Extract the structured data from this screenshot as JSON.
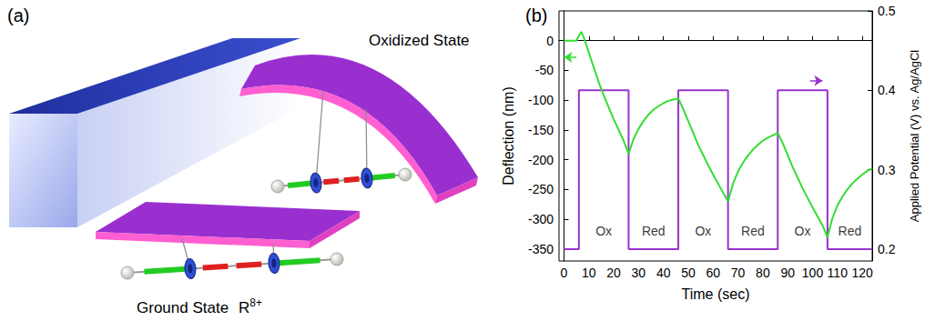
{
  "panel_a": {
    "letter": "(a)",
    "labels": {
      "oxidized": "Oxidized State",
      "ground": "Ground State"
    },
    "molecule": {
      "base": "R",
      "superscript": "8+"
    }
  },
  "chart_data": {
    "type": "line",
    "panel_label": "(b)",
    "x_label": "Time (sec)",
    "y_label": "Deflection (nm)",
    "y2_label": "Applied Potential (V) vs. Ag/AgCl",
    "xlim": [
      -2,
      124
    ],
    "xticks": [
      0,
      10,
      20,
      30,
      40,
      50,
      60,
      70,
      80,
      90,
      100,
      110,
      120
    ],
    "ylim": [
      -370,
      50
    ],
    "yticks": [
      -350,
      -300,
      -250,
      -200,
      -150,
      -100,
      -50,
      0
    ],
    "y2lim": [
      0.185,
      0.5
    ],
    "y2ticks": [
      0.2,
      0.3,
      0.4,
      0.5
    ],
    "grid": false,
    "series": [
      {
        "color": "#33dd33",
        "x": [
          0,
          2,
          4,
          5,
          6,
          7,
          8,
          10,
          12,
          14,
          16,
          18,
          20,
          22,
          24,
          26,
          28,
          30,
          32,
          34,
          36,
          38,
          40,
          42,
          44,
          46,
          48,
          50,
          52,
          54,
          56,
          58,
          60,
          62,
          64,
          66,
          68,
          70,
          72,
          74,
          76,
          78,
          80,
          82,
          84,
          86,
          88,
          90,
          92,
          94,
          96,
          98,
          100,
          102,
          104,
          106,
          108,
          110,
          112,
          114,
          116,
          118,
          120,
          122,
          124
        ],
        "values": [
          0,
          0,
          0,
          0,
          8,
          15,
          5,
          -20,
          -45,
          -70,
          -92,
          -112,
          -132,
          -150,
          -168,
          -190,
          -165,
          -148,
          -135,
          -124,
          -116,
          -110,
          -105,
          -101,
          -99,
          -97,
          -115,
          -135,
          -155,
          -175,
          -192,
          -209,
          -225,
          -240,
          -255,
          -270,
          -240,
          -220,
          -205,
          -193,
          -183,
          -175,
          -168,
          -163,
          -159,
          -155,
          -172,
          -192,
          -212,
          -230,
          -248,
          -264,
          -280,
          -295,
          -310,
          -330,
          -298,
          -277,
          -262,
          -250,
          -240,
          -232,
          -225,
          -219,
          -214
        ]
      },
      {
        "color": "#9933cc",
        "axis": "y2",
        "x": [
          0,
          6,
          6,
          26,
          26,
          46,
          46,
          66,
          66,
          86,
          86,
          106,
          106,
          124
        ],
        "values": [
          0.2,
          0.2,
          0.4,
          0.4,
          0.2,
          0.2,
          0.4,
          0.4,
          0.2,
          0.2,
          0.4,
          0.4,
          0.2,
          0.2
        ]
      }
    ],
    "annotations": [
      {
        "text": "Ox",
        "x": 16,
        "y": -320
      },
      {
        "text": "Red",
        "x": 36,
        "y": -320
      },
      {
        "text": "Ox",
        "x": 56,
        "y": -320
      },
      {
        "text": "Red",
        "x": 76,
        "y": -320
      },
      {
        "text": "Ox",
        "x": 96,
        "y": -320
      },
      {
        "text": "Red",
        "x": 115,
        "y": -320
      }
    ],
    "arrows": [
      {
        "x": [
          5,
          0
        ],
        "y": -28,
        "color": "#33dd33"
      },
      {
        "x": [
          99,
          104
        ],
        "y": 0.412,
        "axis": "y2",
        "color": "#9933cc"
      }
    ]
  }
}
